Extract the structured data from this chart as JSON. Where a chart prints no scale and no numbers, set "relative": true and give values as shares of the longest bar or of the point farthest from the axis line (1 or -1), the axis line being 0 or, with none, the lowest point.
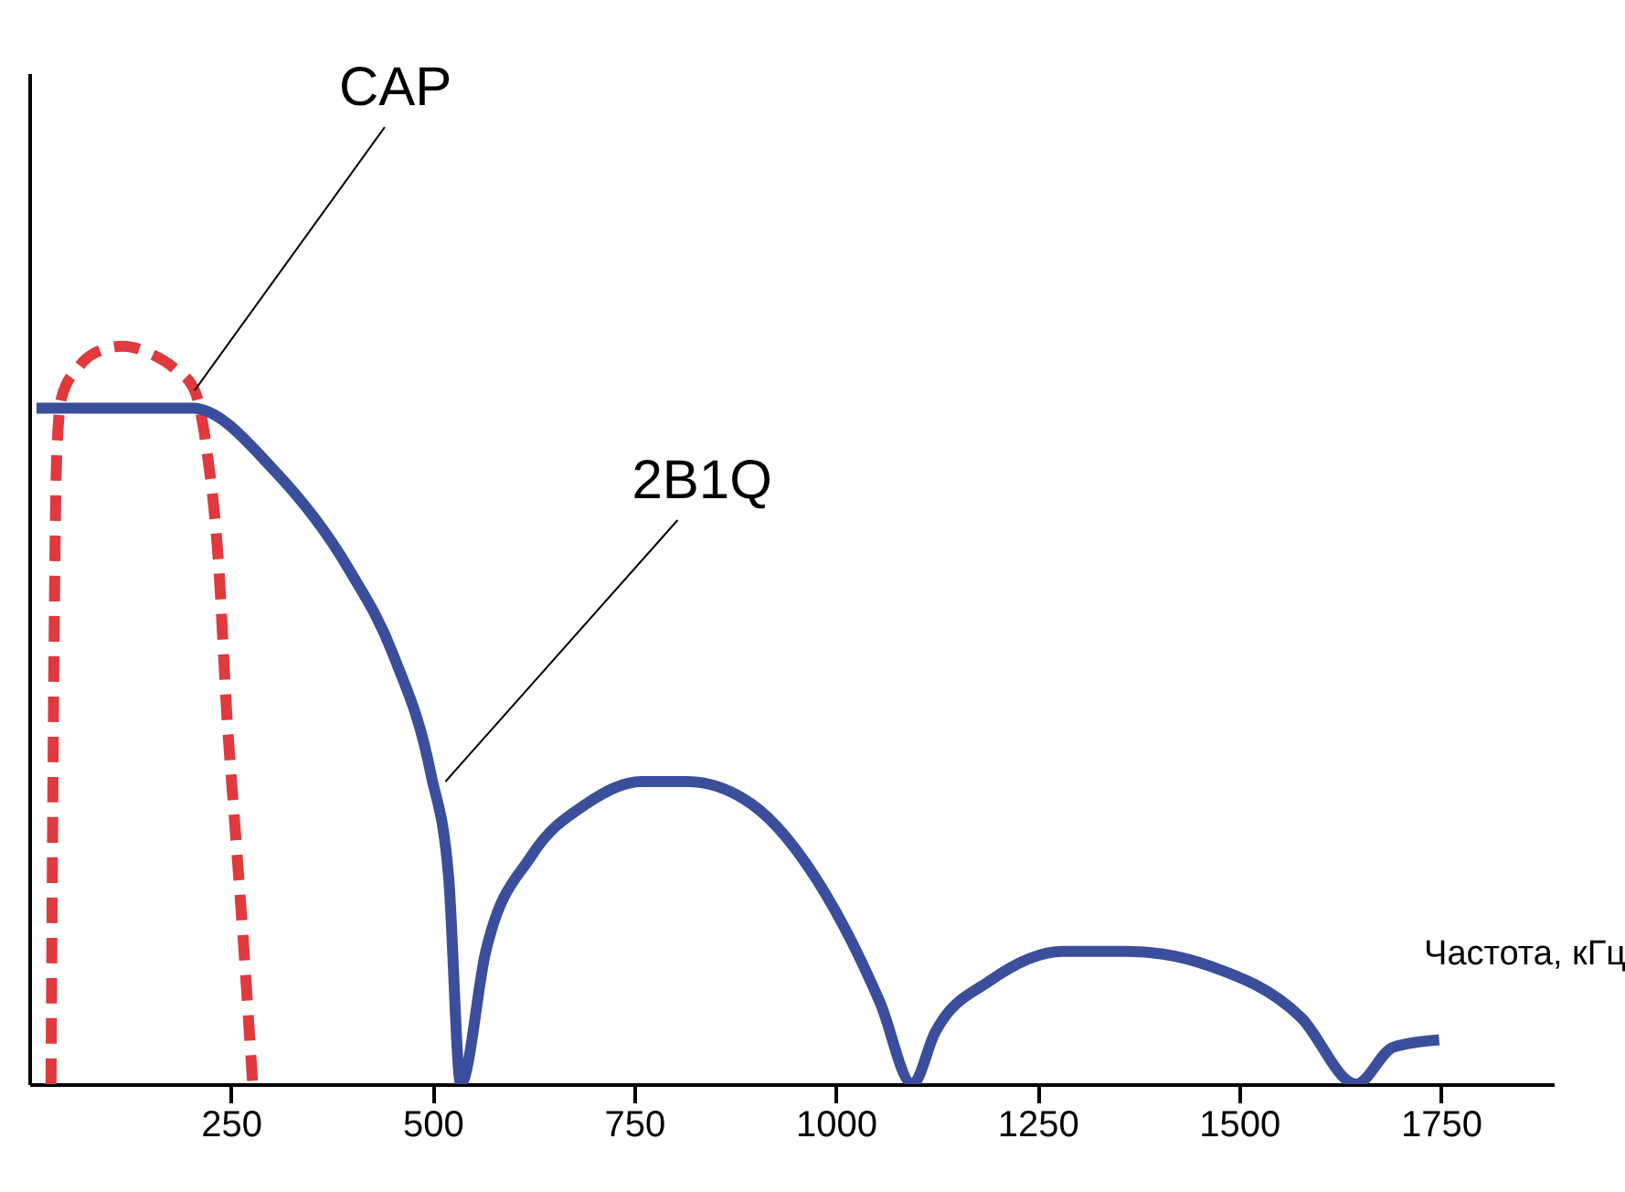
{
  "chart_data": {
    "type": "line",
    "xlabel": "Частота, кГц",
    "relative": true,
    "xlim": [
      0,
      1890
    ],
    "xticks": [
      250,
      500,
      750,
      1000,
      1250,
      1500,
      1750
    ],
    "grid": false,
    "marker": "none",
    "series": [
      {
        "color": "#e0393e",
        "line_style": "dashed",
        "x": [
          27,
          30,
          34,
          40,
          60,
          80,
          116,
          150,
          180,
          205,
          220,
          235,
          245,
          255,
          265,
          277
        ],
        "values": [
          0,
          0.5,
          0.85,
          0.93,
          0.97,
          0.99,
          1,
          0.99,
          0.97,
          0.94,
          0.86,
          0.7,
          0.5,
          0.35,
          0.2,
          0
        ]
      },
      {
        "color": "#3a4e9c",
        "line_style": "solid",
        "x": [
          9,
          202,
          305,
          395,
          452,
          498,
          520,
          535,
          566,
          623,
          691,
          759,
          816,
          895,
          986,
          1055,
          1095,
          1123,
          1191,
          1282,
          1361,
          1464,
          1577,
          1645,
          1691,
          1748
        ],
        "values": [
          0.916,
          0.916,
          0.83,
          0.7,
          0.58,
          0.42,
          0.28,
          0,
          0.18,
          0.31,
          0.38,
          0.41,
          0.41,
          0.38,
          0.26,
          0.11,
          0,
          0.07,
          0.14,
          0.18,
          0.18,
          0.16,
          0.09,
          0,
          0.05,
          0.06
        ]
      }
    ],
    "annotations": [
      {
        "text": "CAP",
        "x": 205,
        "y": 0.94
      },
      {
        "text": "2B1Q",
        "x": 516,
        "y": 0.41
      }
    ]
  }
}
